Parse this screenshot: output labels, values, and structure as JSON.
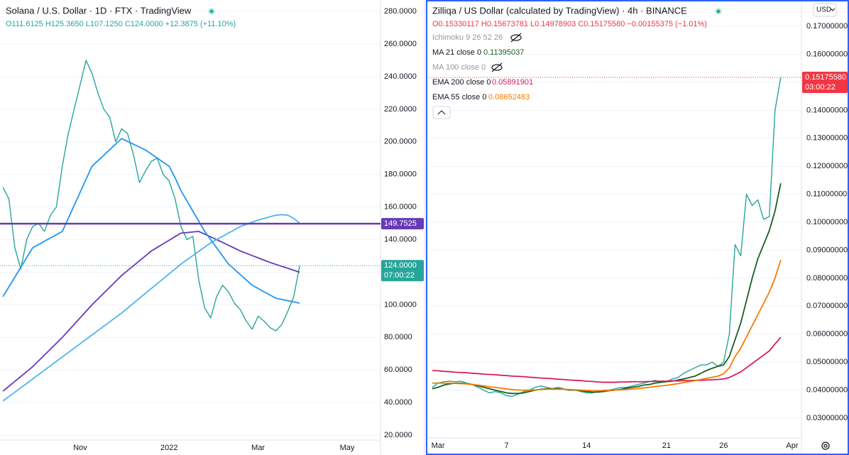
{
  "chart_data": [
    {
      "type": "line",
      "title": "Solana / U.S. Dollar · 1D · FTX · TradingView",
      "subtitle": "O111.6125 H125.3650 L107.1250 C124.0000 +12.3875 (+11.10%)",
      "categories": [
        null,
        null,
        null,
        null,
        null,
        null,
        null,
        null,
        null,
        null,
        null,
        null,
        null,
        "Nov",
        null,
        null,
        null,
        null,
        null,
        null,
        null,
        null,
        null,
        null,
        null,
        null,
        null,
        null,
        "2022",
        null,
        null,
        null,
        null,
        null,
        null,
        null,
        null,
        null,
        null,
        null,
        null,
        null,
        null,
        "Mar",
        null,
        null,
        null,
        null,
        null,
        null,
        null,
        null,
        null,
        null,
        null,
        null,
        null,
        null,
        "May",
        null,
        null,
        null,
        null,
        null
      ],
      "series": [
        {
          "color": "#26a69a",
          "values": [
            172,
            165,
            135,
            122,
            140,
            148,
            150,
            145,
            155,
            160,
            185,
            205,
            220,
            235,
            250,
            242,
            230,
            220,
            215,
            200,
            208,
            205,
            192,
            175,
            182,
            188,
            190,
            180,
            176,
            165,
            148,
            140,
            142,
            115,
            98,
            92,
            105,
            112,
            108,
            101,
            97,
            90,
            85,
            93,
            90,
            86,
            84,
            88,
            96,
            105,
            124,
            null,
            null,
            null,
            null,
            null,
            null,
            null,
            null,
            null,
            null,
            null,
            null,
            null
          ]
        },
        {
          "color": "#673ab7",
          "values": [
            47,
            50,
            53,
            56,
            59,
            62,
            65.6,
            69.2,
            72.8,
            76.4,
            80,
            84,
            88,
            92,
            96,
            100,
            103.6,
            107.2,
            110.8,
            114.4,
            118,
            121,
            124,
            127,
            130,
            133,
            135.2,
            137.4,
            139.6,
            141.8,
            144,
            144.3,
            144.7,
            145,
            143.3,
            141.7,
            140,
            138.3,
            136.5,
            134.8,
            133,
            131.6,
            130.2,
            128.8,
            127.4,
            126,
            124.8,
            123.6,
            122.4,
            121.2,
            120,
            null,
            null,
            null,
            null,
            null,
            null,
            null,
            null,
            null,
            null,
            null,
            null,
            null
          ]
        },
        {
          "color": "#4fb3f0",
          "values": [
            41,
            43.7,
            46.4,
            49.1,
            51.8,
            54.5,
            57.2,
            59.9,
            62.6,
            65.3,
            68,
            70.7,
            73.4,
            76.1,
            78.8,
            81.5,
            84.2,
            86.9,
            89.6,
            92.3,
            95,
            98,
            101,
            104,
            107,
            110,
            113,
            116,
            119,
            122,
            125,
            127.6,
            130.2,
            132.8,
            135.4,
            138,
            140,
            142,
            144,
            146,
            148,
            149.3,
            150.7,
            152,
            153,
            154,
            155,
            155.3,
            155,
            153,
            150,
            null,
            null,
            null,
            null,
            null,
            null,
            null,
            null,
            null,
            null,
            null,
            null,
            null
          ]
        },
        {
          "color": "#2196f3",
          "values": [
            105,
            111,
            117,
            123,
            129,
            135,
            137,
            139,
            141,
            143,
            145,
            153,
            161,
            169,
            177,
            185,
            188.4,
            191.8,
            195.2,
            198.6,
            202,
            200.2,
            198.5,
            196.8,
            195,
            192.5,
            190,
            187.5,
            185,
            178,
            170,
            163.8,
            157.5,
            151.3,
            145,
            140,
            135,
            130,
            125,
            121.8,
            118.5,
            115.3,
            112,
            110,
            108,
            106,
            104,
            103.3,
            102.5,
            101.8,
            101,
            null,
            null,
            null,
            null,
            null,
            null,
            null,
            null,
            null,
            null,
            null,
            null,
            null
          ]
        }
      ],
      "ylim": [
        17,
        287
      ],
      "yticks": [
        {
          "value": 20,
          "label": "20.0000"
        },
        {
          "value": 40,
          "label": "40.0000"
        },
        {
          "value": 60,
          "label": "60.0000"
        },
        {
          "value": 80,
          "label": "80.0000"
        },
        {
          "value": 100,
          "label": "100.0000"
        },
        {
          "value": 120,
          "label": "120.0000"
        },
        {
          "value": 140,
          "label": "140.0000"
        },
        {
          "value": 160,
          "label": "160.0000"
        },
        {
          "value": 180,
          "label": "180.0000"
        },
        {
          "value": 200,
          "label": "200.0000"
        },
        {
          "value": 220,
          "label": "220.0000"
        },
        {
          "value": 240,
          "label": "240.0000"
        },
        {
          "value": 260,
          "label": "260.0000"
        },
        {
          "value": 280,
          "label": "280.0000"
        }
      ],
      "grid": true,
      "level": {
        "value": 149.7525,
        "label": "149.7525",
        "color": "#673ab7"
      },
      "last_price": {
        "value": 124,
        "label": "124.0000",
        "countdown": "07:00:22",
        "color": "#26a69a"
      }
    },
    {
      "type": "line",
      "title": "Zilliqa / US Dollar (calculated by TradingView) · 4h · BINANCE",
      "subtitle": "O0.15330117 H0.15673781 L0.14978903 C0.15175580 −0.00155375 (−1.01%)",
      "currency": "USD",
      "hidden_indicators": [
        "Ichimoku 9 26 52 26",
        "MA 100 close 0"
      ],
      "categories": [
        null,
        "Mar",
        null,
        null,
        null,
        null,
        null,
        null,
        null,
        null,
        null,
        null,
        null,
        "7",
        null,
        null,
        null,
        null,
        null,
        null,
        null,
        null,
        null,
        null,
        null,
        null,
        null,
        "14",
        null,
        null,
        null,
        null,
        null,
        null,
        null,
        null,
        null,
        null,
        null,
        null,
        null,
        "21",
        null,
        null,
        null,
        null,
        null,
        null,
        null,
        null,
        null,
        "26",
        null,
        null,
        null,
        null,
        null,
        null,
        null,
        null,
        null,
        null,
        null,
        "Apr",
        null
      ],
      "series": [
        {
          "color": "#26a69a",
          "values": [
            0.041,
            0.0425,
            0.043,
            0.0432,
            0.043,
            0.0432,
            0.0425,
            0.042,
            0.041,
            0.04,
            0.039,
            0.0395,
            0.039,
            0.038,
            0.0378,
            0.0385,
            0.0395,
            0.04,
            0.041,
            0.0415,
            0.041,
            0.0405,
            0.041,
            0.0405,
            0.04,
            0.04,
            0.0395,
            0.039,
            0.039,
            0.0395,
            0.04,
            0.04,
            0.0405,
            0.041,
            0.041,
            0.0415,
            0.042,
            0.0425,
            0.043,
            0.0435,
            0.043,
            0.043,
            0.044,
            0.0445,
            0.046,
            0.047,
            0.048,
            0.049,
            0.049,
            0.05,
            0.0485,
            0.05,
            0.06,
            0.092,
            0.088,
            0.11,
            0.106,
            0.108,
            0.101,
            0.102,
            0.14,
            0.1518,
            null,
            null,
            null
          ]
        },
        {
          "name": "MA 21 close 0",
          "legend_value": "0.11395037",
          "color": "#1b5e20",
          "values": [
            0.0405,
            0.041,
            0.0418,
            0.0422,
            0.0425,
            0.0425,
            0.0423,
            0.042,
            0.0415,
            0.041,
            0.0405,
            0.04,
            0.0395,
            0.039,
            0.0388,
            0.0388,
            0.039,
            0.0395,
            0.04,
            0.0403,
            0.0405,
            0.0405,
            0.0405,
            0.0403,
            0.04,
            0.04,
            0.0398,
            0.0395,
            0.0393,
            0.0393,
            0.0395,
            0.0398,
            0.04,
            0.0403,
            0.0407,
            0.041,
            0.0413,
            0.0418,
            0.042,
            0.0425,
            0.0428,
            0.043,
            0.0432,
            0.0436,
            0.044,
            0.0445,
            0.045,
            0.046,
            0.047,
            0.0478,
            0.0485,
            0.049,
            0.052,
            0.058,
            0.064,
            0.072,
            0.08,
            0.087,
            0.092,
            0.097,
            0.104,
            0.1139,
            null,
            null,
            null
          ]
        },
        {
          "name": "EMA 200 close 0",
          "legend_value": "0.05891901",
          "color": "#d81b60",
          "values": [
            0.047,
            0.0469,
            0.0467,
            0.0466,
            0.0464,
            0.0463,
            0.0462,
            0.046,
            0.0459,
            0.0457,
            0.0456,
            0.0455,
            0.0453,
            0.0452,
            0.045,
            0.0449,
            0.0448,
            0.0446,
            0.0445,
            0.0443,
            0.0442,
            0.0441,
            0.0439,
            0.0438,
            0.0436,
            0.0435,
            0.0434,
            0.0432,
            0.0431,
            0.0429,
            0.0428,
            0.0428,
            0.0428,
            0.0429,
            0.0429,
            0.043,
            0.043,
            0.043,
            0.0431,
            0.0431,
            0.0432,
            0.0432,
            0.0433,
            0.0433,
            0.0434,
            0.0434,
            0.0435,
            0.0435,
            0.0436,
            0.0437,
            0.0438,
            0.044,
            0.0445,
            0.0455,
            0.0465,
            0.048,
            0.0495,
            0.051,
            0.0525,
            0.054,
            0.0565,
            0.0589,
            null,
            null,
            null
          ]
        },
        {
          "name": "EMA 55 close 0",
          "legend_value": "0.08652483",
          "color": "#f57c00",
          "values": [
            0.0425,
            0.0425,
            0.0425,
            0.0425,
            0.0424,
            0.0423,
            0.0422,
            0.042,
            0.0418,
            0.0415,
            0.0412,
            0.041,
            0.0407,
            0.0404,
            0.0402,
            0.04,
            0.04,
            0.04,
            0.0401,
            0.0402,
            0.0403,
            0.0403,
            0.0403,
            0.0403,
            0.0402,
            0.0401,
            0.04,
            0.0399,
            0.0398,
            0.0398,
            0.0398,
            0.0399,
            0.04,
            0.0401,
            0.0402,
            0.0404,
            0.0406,
            0.0408,
            0.041,
            0.0413,
            0.0415,
            0.0417,
            0.042,
            0.0423,
            0.0427,
            0.043,
            0.0434,
            0.0438,
            0.0442,
            0.0446,
            0.045,
            0.0458,
            0.048,
            0.052,
            0.055,
            0.059,
            0.063,
            0.067,
            0.071,
            0.075,
            0.08,
            0.0865,
            null,
            null,
            null
          ]
        }
      ],
      "ylim": [
        0.0229,
        0.1789
      ],
      "yticks": [
        {
          "value": 0.03,
          "label": "0.03000000"
        },
        {
          "value": 0.04,
          "label": "0.04000000"
        },
        {
          "value": 0.05,
          "label": "0.05000000"
        },
        {
          "value": 0.06,
          "label": "0.06000000"
        },
        {
          "value": 0.07,
          "label": "0.07000000"
        },
        {
          "value": 0.08,
          "label": "0.08000000"
        },
        {
          "value": 0.09,
          "label": "0.09000000"
        },
        {
          "value": 0.1,
          "label": "0.10000000"
        },
        {
          "value": 0.11,
          "label": "0.11000000"
        },
        {
          "value": 0.12,
          "label": "0.12000000"
        },
        {
          "value": 0.13,
          "label": "0.13000000"
        },
        {
          "value": 0.14,
          "label": "0.14000000"
        },
        {
          "value": 0.15,
          "label": "0.15000000"
        },
        {
          "value": 0.16,
          "label": "0.16000000"
        },
        {
          "value": 0.17,
          "label": "0.17000000"
        }
      ],
      "grid": true,
      "last_price": {
        "value": 0.1517558,
        "label": "0.15175580",
        "countdown": "03:00:22",
        "color": "#f23645"
      }
    }
  ]
}
